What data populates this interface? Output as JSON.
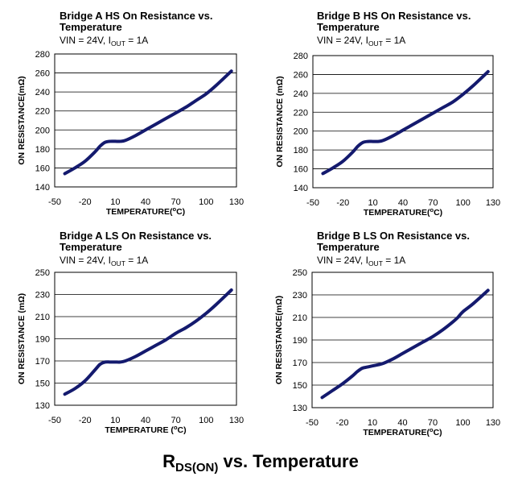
{
  "caption": {
    "main": "R",
    "sub": "DS(ON)",
    "rest": " vs. Temperature"
  },
  "chart_data": [
    {
      "type": "line",
      "title_line1": "Bridge A HS On Resistance vs.",
      "title_line2": "Temperature",
      "cond": {
        "a": "VIN = 24V, I",
        "sub": "OUT",
        "b": " = 1A"
      },
      "xlabel": {
        "a": "TEMPERATURE(",
        "sup": "o",
        "b": "C)"
      },
      "ylabel": "ON RESISTANCE(mΩ)",
      "xlim": [
        -50,
        130
      ],
      "xticks": [
        -50,
        -20,
        10,
        40,
        70,
        100,
        130
      ],
      "ylim": [
        140,
        280
      ],
      "yticks": [
        140,
        160,
        180,
        200,
        220,
        240,
        260,
        280
      ],
      "grid": true,
      "series": [
        {
          "color": "#141a6e",
          "x": [
            -40,
            -30,
            -20,
            -10,
            -5,
            0,
            5,
            10,
            15,
            20,
            30,
            40,
            50,
            60,
            70,
            80,
            90,
            100,
            110,
            125
          ],
          "y": [
            154,
            160,
            167,
            177,
            183,
            187,
            188,
            188,
            188,
            189,
            194,
            200,
            206,
            212,
            218,
            224,
            231,
            238,
            247,
            262
          ]
        }
      ]
    },
    {
      "type": "line",
      "title_line1": "Bridge B HS On Resistance vs.",
      "title_line2": "Temperature",
      "cond": {
        "a": "VIN = 24V, I",
        "sub": "OUT",
        "b": " = 1A"
      },
      "xlabel": {
        "a": "TEMPERATURE(",
        "sup": "o",
        "b": "C)"
      },
      "ylabel": "ON RESISTANCE (mΩ)",
      "xlim": [
        -50,
        130
      ],
      "xticks": [
        -50,
        -20,
        10,
        40,
        70,
        100,
        130
      ],
      "ylim": [
        140,
        280
      ],
      "yticks": [
        140,
        160,
        180,
        200,
        220,
        240,
        260,
        280
      ],
      "grid": true,
      "series": [
        {
          "color": "#141a6e",
          "x": [
            -40,
            -30,
            -20,
            -10,
            -5,
            0,
            5,
            10,
            15,
            20,
            30,
            40,
            50,
            60,
            70,
            80,
            90,
            100,
            110,
            125
          ],
          "y": [
            155,
            161,
            168,
            178,
            184,
            188,
            189,
            189,
            189,
            190,
            195,
            201,
            207,
            213,
            219,
            225,
            231,
            239,
            248,
            263
          ]
        }
      ]
    },
    {
      "type": "line",
      "title_line1": "Bridge A LS On Resistance vs.",
      "title_line2": "Temperature",
      "cond": {
        "a": "VIN = 24V, I",
        "sub": "OUT",
        "b": " = 1A"
      },
      "xlabel": {
        "a": "TEMPERATURE (",
        "sup": "o",
        "b": "C)"
      },
      "ylabel": "ON RESISTANCE (mΩ)",
      "xlim": [
        -50,
        130
      ],
      "xticks": [
        -50,
        -20,
        10,
        40,
        70,
        100,
        130
      ],
      "ylim": [
        130,
        250
      ],
      "yticks": [
        130,
        150,
        170,
        190,
        210,
        230,
        250
      ],
      "grid": true,
      "series": [
        {
          "color": "#141a6e",
          "x": [
            -40,
            -30,
            -20,
            -10,
            -5,
            0,
            5,
            10,
            15,
            20,
            30,
            40,
            50,
            60,
            70,
            80,
            90,
            100,
            110,
            125
          ],
          "y": [
            140,
            145,
            152,
            162,
            167,
            169,
            169,
            169,
            169,
            170,
            174,
            179,
            184,
            189,
            195,
            200,
            206,
            213,
            221,
            234
          ]
        }
      ]
    },
    {
      "type": "line",
      "title_line1": "Bridge B LS On Resistance vs.",
      "title_line2": "Temperature",
      "cond": {
        "a": "VIN = 24V, I",
        "sub": "OUT",
        "b": " = 1A"
      },
      "xlabel": {
        "a": "TEMPERATURE(",
        "sup": "o",
        "b": "C)"
      },
      "ylabel": "ON RESISTANCE(mΩ)",
      "xlim": [
        -50,
        130
      ],
      "xticks": [
        -50,
        -20,
        10,
        40,
        70,
        100,
        130
      ],
      "ylim": [
        130,
        250
      ],
      "yticks": [
        130,
        150,
        170,
        190,
        210,
        230,
        250
      ],
      "grid": true,
      "series": [
        {
          "color": "#141a6e",
          "x": [
            -40,
            -30,
            -20,
            -10,
            -5,
            0,
            5,
            10,
            20,
            30,
            40,
            50,
            60,
            70,
            80,
            90,
            95,
            100,
            110,
            125
          ],
          "y": [
            139,
            145,
            151,
            158,
            162,
            165,
            166,
            167,
            169,
            173,
            178,
            183,
            188,
            193,
            199,
            206,
            210,
            215,
            222,
            234
          ]
        }
      ]
    }
  ]
}
